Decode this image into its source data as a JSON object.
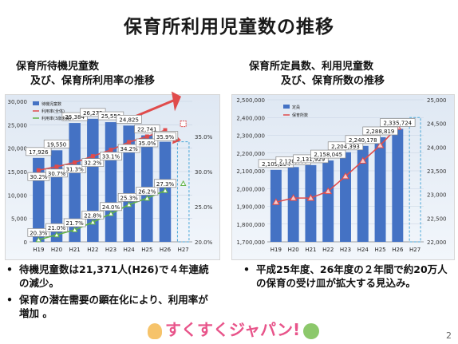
{
  "page_title": "保育所利用児童数の推移",
  "left_subtitle": [
    "保育所待機児童数",
    "及び、保育所利用率の推移"
  ],
  "right_subtitle": [
    "保育所定員数、利用児童数",
    "及び、保育所数の推移"
  ],
  "left_bullets": [
    "待機児童数は21,371人(H26)で４年連続の減少。",
    "保育の潜在需要の顕在化により、利用率が増加 。"
  ],
  "right_bullets": [
    "平成25年度、26年度の２年間で約20万人の保育の受け皿が拡大する見込み。"
  ],
  "logo_text": "すくすくジャパン!",
  "page_number": "2",
  "colors": {
    "bar": "#4472c4",
    "line": "#e04b4b",
    "green": "#62b447",
    "dashed": "#4aa7d8",
    "arrow": "#e04b4b"
  },
  "chart_data": [
    {
      "type": "bar",
      "title": "",
      "categories": [
        "H19",
        "H20",
        "H21",
        "H22",
        "H23",
        "H24",
        "H25",
        "H26",
        "H27"
      ],
      "ylim": [
        0,
        30000
      ],
      "y2lim": [
        20.0,
        40.0
      ],
      "yticks": [
        "0",
        "5,000",
        "10,000",
        "15,000",
        "20,000",
        "25,000",
        "30,000"
      ],
      "y2ticks": [
        "20.0%",
        "25.0%",
        "30.0%",
        "35.0%"
      ],
      "legend": [
        "待機児童数",
        "利用率(全体)",
        "利用率(3歳未満)"
      ],
      "series": [
        {
          "name": "待機児童数",
          "kind": "bar",
          "values": [
            17926,
            19550,
            25384,
            26275,
            25556,
            24825,
            22741,
            21371,
            null
          ],
          "labels": [
            "17,926",
            "19,550",
            "25,384",
            "26,275",
            "25,556",
            "24,825",
            "22,741",
            "21,371",
            ""
          ]
        },
        {
          "name": "利用率(全体)",
          "kind": "line",
          "axis": "right",
          "values": [
            30.2,
            30.7,
            31.3,
            32.2,
            33.1,
            34.2,
            35.0,
            35.9,
            null
          ],
          "labels": [
            "30.2%",
            "30.7%",
            "31.3%",
            "32.2%",
            "33.1%",
            "34.2%",
            "35.0%",
            "35.9%",
            ""
          ]
        },
        {
          "name": "利用率(3歳未満)",
          "kind": "line",
          "axis": "right",
          "values": [
            20.3,
            21.0,
            21.7,
            22.8,
            24.0,
            25.3,
            26.2,
            27.3,
            null
          ],
          "labels": [
            "20.3%",
            "21.0%",
            "21.7%",
            "22.8%",
            "24.0%",
            "25.3%",
            "26.2%",
            "27.3%",
            ""
          ]
        }
      ]
    },
    {
      "type": "bar",
      "title": "",
      "categories": [
        "H19",
        "H20",
        "H21",
        "H22",
        "H23",
        "H24",
        "H25",
        "H26",
        "H27"
      ],
      "ylim": [
        1700000,
        2500000
      ],
      "y2lim": [
        22000,
        25000
      ],
      "yticks": [
        "1,700,000",
        "1,800,000",
        "1,900,000",
        "2,000,000",
        "2,100,000",
        "2,200,000",
        "2,300,000",
        "2,400,000",
        "2,500,000"
      ],
      "y2ticks": [
        "22,000",
        "22,500",
        "23,000",
        "23,500",
        "24,000",
        "24,500",
        "25,000"
      ],
      "legend": [
        "定員",
        "保育所数"
      ],
      "series": [
        {
          "name": "定員",
          "kind": "bar",
          "values": [
            2105254,
            2120889,
            2131929,
            2158045,
            2204393,
            2240178,
            2288819,
            2335724,
            null
          ],
          "labels": [
            "2,105,254",
            "2,120,889",
            "2,131,929",
            "2,158,045",
            "2,204,393",
            "2,240,178",
            "2,288,819",
            "2,335,724",
            ""
          ]
        },
        {
          "name": "保育所数",
          "kind": "line",
          "axis": "right",
          "values": [
            22838,
            22925,
            22925,
            23069,
            23385,
            23711,
            24038,
            24425,
            null
          ]
        }
      ]
    }
  ]
}
